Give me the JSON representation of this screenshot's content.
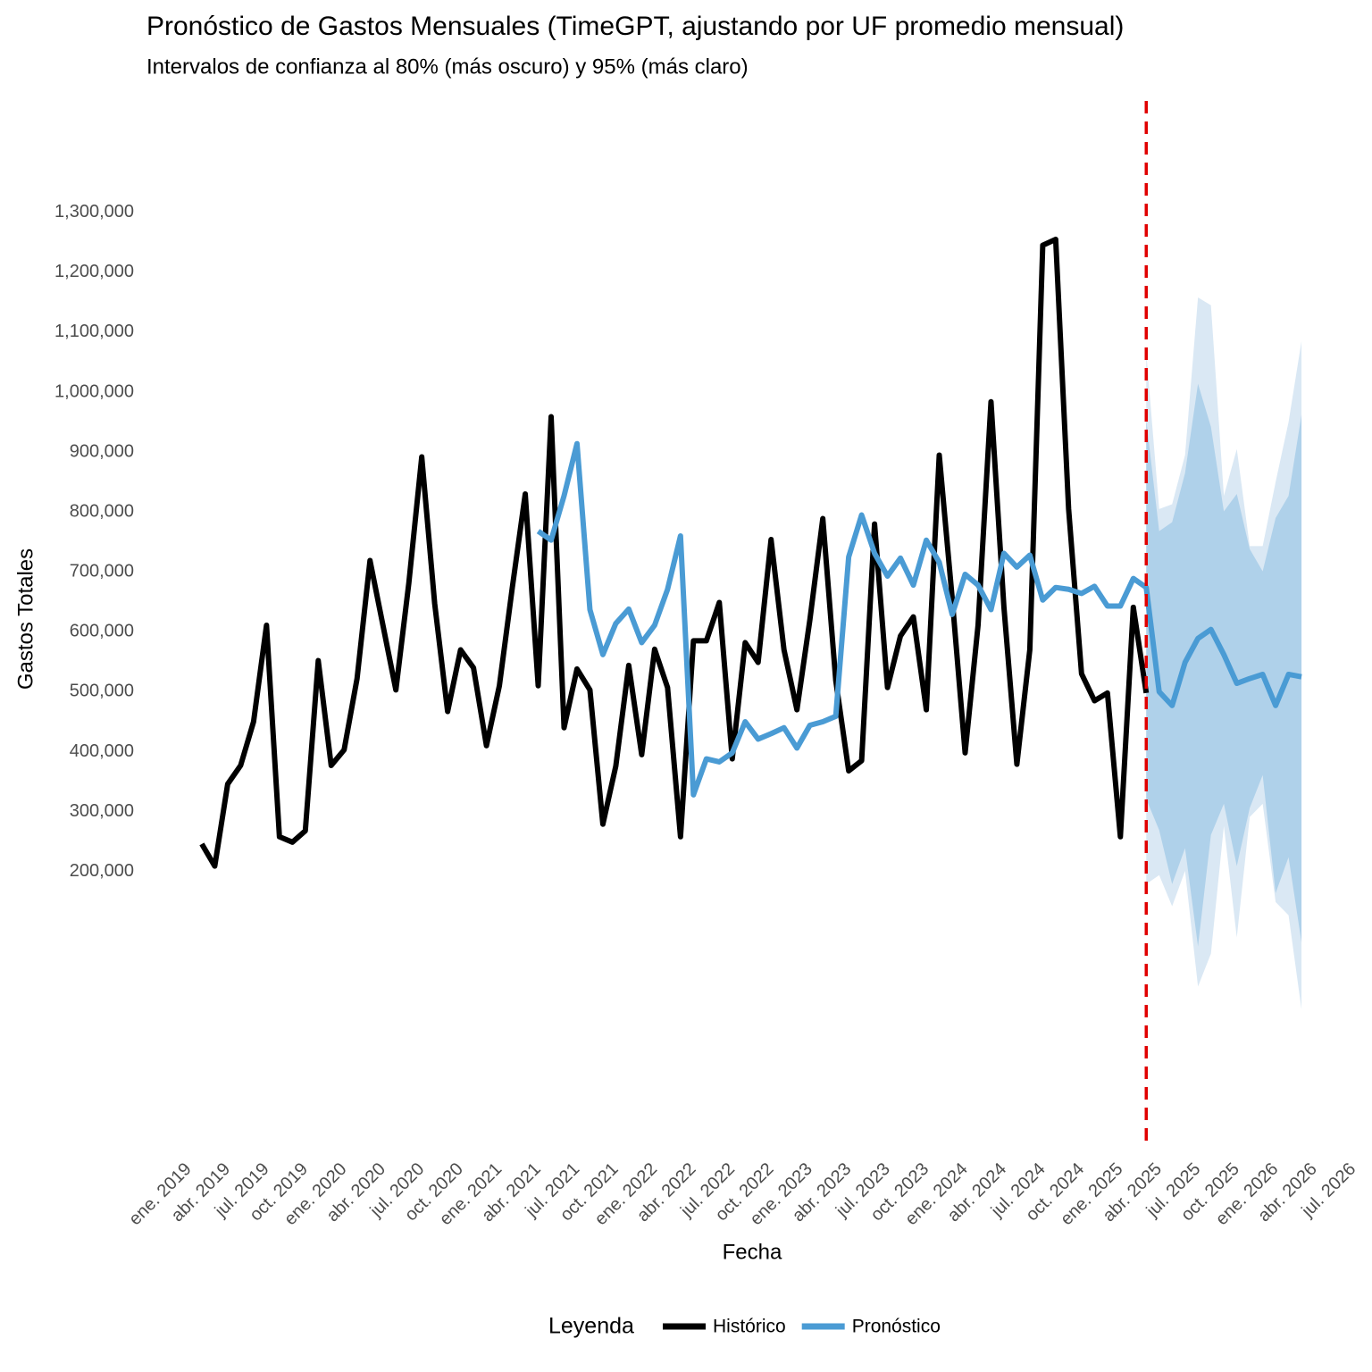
{
  "chart_data": {
    "type": "line",
    "title": "Pronóstico de Gastos Mensuales (TimeGPT, ajustando por UF promedio mensual)",
    "subtitle": "Intervalos de confianza al 80% (más oscuro) y 95% (más claro)",
    "x_label": "Fecha",
    "y_label": "Gastos Totales",
    "legend_title": "Leyenda",
    "legend_position": "bottom",
    "grid": false,
    "x": [
      "2019-02",
      "2019-03",
      "2019-04",
      "2019-05",
      "2019-06",
      "2019-07",
      "2019-08",
      "2019-09",
      "2019-10",
      "2019-11",
      "2019-12",
      "2020-01",
      "2020-02",
      "2020-03",
      "2020-04",
      "2020-05",
      "2020-06",
      "2020-07",
      "2020-08",
      "2020-09",
      "2020-10",
      "2020-11",
      "2020-12",
      "2021-01",
      "2021-02",
      "2021-03",
      "2021-04",
      "2021-05",
      "2021-06",
      "2021-07",
      "2021-08",
      "2021-09",
      "2021-10",
      "2021-11",
      "2021-12",
      "2022-01",
      "2022-02",
      "2022-03",
      "2022-04",
      "2022-05",
      "2022-06",
      "2022-07",
      "2022-08",
      "2022-09",
      "2022-10",
      "2022-11",
      "2022-12",
      "2023-01",
      "2023-02",
      "2023-03",
      "2023-04",
      "2023-05",
      "2023-06",
      "2023-07",
      "2023-08",
      "2023-09",
      "2023-10",
      "2023-11",
      "2023-12",
      "2024-01",
      "2024-02",
      "2024-03",
      "2024-04",
      "2024-05",
      "2024-06",
      "2024-07",
      "2024-08",
      "2024-09",
      "2024-10",
      "2024-11",
      "2024-12",
      "2025-01",
      "2025-02",
      "2025-03",
      "2025-04",
      "2025-05",
      "2025-06",
      "2025-07",
      "2025-08",
      "2025-09",
      "2025-10",
      "2025-11",
      "2025-12",
      "2026-01",
      "2026-02",
      "2026-03"
    ],
    "series": [
      {
        "name": "Histórico",
        "color": "#000000",
        "values": [
          246000,
          209000,
          346000,
          377000,
          450000,
          611000,
          258000,
          249000,
          268000,
          552000,
          377000,
          403000,
          522000,
          719000,
          611000,
          503000,
          681000,
          892000,
          647000,
          467000,
          570000,
          540000,
          410000,
          510000,
          674000,
          830000,
          510000,
          959000,
          440000,
          538000,
          503000,
          279000,
          376000,
          544000,
          395000,
          571000,
          507000,
          258000,
          585000,
          585000,
          649000,
          388000,
          582000,
          549000,
          754000,
          570000,
          470000,
          620000,
          789000,
          519000,
          368000,
          385000,
          780000,
          507000,
          593000,
          625000,
          470000,
          895000,
          656000,
          398000,
          611000,
          984000,
          641000,
          379000,
          570000,
          1245000,
          1255000,
          805000,
          530000,
          485000,
          498000,
          258000,
          641000,
          498000,
          null,
          null,
          null,
          null,
          null,
          null,
          null,
          null,
          null,
          null,
          null,
          null
        ]
      },
      {
        "name": "Pronóstico",
        "color": "#4a9bd4",
        "values": [
          null,
          null,
          null,
          null,
          null,
          null,
          null,
          null,
          null,
          null,
          null,
          null,
          null,
          null,
          null,
          null,
          null,
          null,
          null,
          null,
          null,
          null,
          null,
          null,
          null,
          null,
          768000,
          753000,
          827000,
          914000,
          637000,
          562000,
          614000,
          638000,
          582000,
          611000,
          671000,
          760000,
          328000,
          388000,
          383000,
          398000,
          450000,
          421000,
          430000,
          440000,
          406000,
          444000,
          450000,
          459000,
          725000,
          795000,
          731000,
          693000,
          723000,
          678000,
          753000,
          716000,
          629000,
          696000,
          678000,
          637000,
          731000,
          708000,
          728000,
          653000,
          674000,
          671000,
          664000,
          676000,
          643000,
          643000,
          689000,
          674000,
          500000,
          477000,
          549000,
          589000,
          604000,
          562000,
          514000,
          522000,
          529000,
          477000,
          529000,
          525000
        ]
      }
    ],
    "intervals": [
      {
        "level": 95,
        "color": "#dae8f4",
        "x": [
          "2025-03",
          "2025-04",
          "2025-05",
          "2025-06",
          "2025-07",
          "2025-08",
          "2025-09",
          "2025-10",
          "2025-11",
          "2025-12",
          "2026-01",
          "2026-02",
          "2026-03"
        ],
        "lower": [
          179000,
          194000,
          142000,
          201000,
          8000,
          63000,
          276000,
          90000,
          291000,
          313000,
          149000,
          127000,
          -30000
        ],
        "upper": [
          1066000,
          805000,
          813000,
          895000,
          1158000,
          1145000,
          827000,
          905000,
          743000,
          743000,
          850000,
          950000,
          1085000
        ]
      },
      {
        "level": 80,
        "color": "#afd1ea",
        "x": [
          "2025-03",
          "2025-04",
          "2025-05",
          "2025-06",
          "2025-07",
          "2025-08",
          "2025-09",
          "2025-10",
          "2025-11",
          "2025-12",
          "2026-01",
          "2026-02",
          "2026-03"
        ],
        "lower": [
          321000,
          269000,
          179000,
          239000,
          75000,
          261000,
          313000,
          209000,
          306000,
          361000,
          164000,
          224000,
          82000
        ],
        "upper": [
          954000,
          768000,
          783000,
          865000,
          1014000,
          942000,
          801000,
          830000,
          738000,
          701000,
          790000,
          827000,
          962000
        ]
      }
    ],
    "vline": {
      "x": "2025-03",
      "color": "#e00000"
    },
    "xlim": [
      "2018-10",
      "2026-07"
    ],
    "xticks": [
      {
        "value": "2019-01",
        "label": "ene. 2019"
      },
      {
        "value": "2019-04",
        "label": "abr. 2019"
      },
      {
        "value": "2019-07",
        "label": "jul. 2019"
      },
      {
        "value": "2019-10",
        "label": "oct. 2019"
      },
      {
        "value": "2020-01",
        "label": "ene. 2020"
      },
      {
        "value": "2020-04",
        "label": "abr. 2020"
      },
      {
        "value": "2020-07",
        "label": "jul. 2020"
      },
      {
        "value": "2020-10",
        "label": "oct. 2020"
      },
      {
        "value": "2021-01",
        "label": "ene. 2021"
      },
      {
        "value": "2021-04",
        "label": "abr. 2021"
      },
      {
        "value": "2021-07",
        "label": "jul. 2021"
      },
      {
        "value": "2021-10",
        "label": "oct. 2021"
      },
      {
        "value": "2022-01",
        "label": "ene. 2022"
      },
      {
        "value": "2022-04",
        "label": "abr. 2022"
      },
      {
        "value": "2022-07",
        "label": "jul. 2022"
      },
      {
        "value": "2022-10",
        "label": "oct. 2022"
      },
      {
        "value": "2023-01",
        "label": "ene. 2023"
      },
      {
        "value": "2023-04",
        "label": "abr. 2023"
      },
      {
        "value": "2023-07",
        "label": "jul. 2023"
      },
      {
        "value": "2023-10",
        "label": "oct. 2023"
      },
      {
        "value": "2024-01",
        "label": "ene. 2024"
      },
      {
        "value": "2024-04",
        "label": "abr. 2024"
      },
      {
        "value": "2024-07",
        "label": "jul. 2024"
      },
      {
        "value": "2024-10",
        "label": "oct. 2024"
      },
      {
        "value": "2025-01",
        "label": "ene. 2025"
      },
      {
        "value": "2025-04",
        "label": "abr. 2025"
      },
      {
        "value": "2025-07",
        "label": "jul. 2025"
      },
      {
        "value": "2025-10",
        "label": "oct. 2025"
      },
      {
        "value": "2026-01",
        "label": "ene. 2026"
      },
      {
        "value": "2026-04",
        "label": "abr. 2026"
      },
      {
        "value": "2026-07",
        "label": "jul. 2026"
      }
    ],
    "ylim": [
      -270000,
      1480000
    ],
    "yticks": [
      {
        "value": 200000,
        "label": "200,000"
      },
      {
        "value": 300000,
        "label": "300,000"
      },
      {
        "value": 400000,
        "label": "400,000"
      },
      {
        "value": 500000,
        "label": "500,000"
      },
      {
        "value": 600000,
        "label": "600,000"
      },
      {
        "value": 700000,
        "label": "700,000"
      },
      {
        "value": 800000,
        "label": "800,000"
      },
      {
        "value": 900000,
        "label": "900,000"
      },
      {
        "value": 1000000,
        "label": "1,000,000"
      },
      {
        "value": 1100000,
        "label": "1,100,000"
      },
      {
        "value": 1200000,
        "label": "1,200,000"
      },
      {
        "value": 1300000,
        "label": "1,300,000"
      }
    ]
  }
}
